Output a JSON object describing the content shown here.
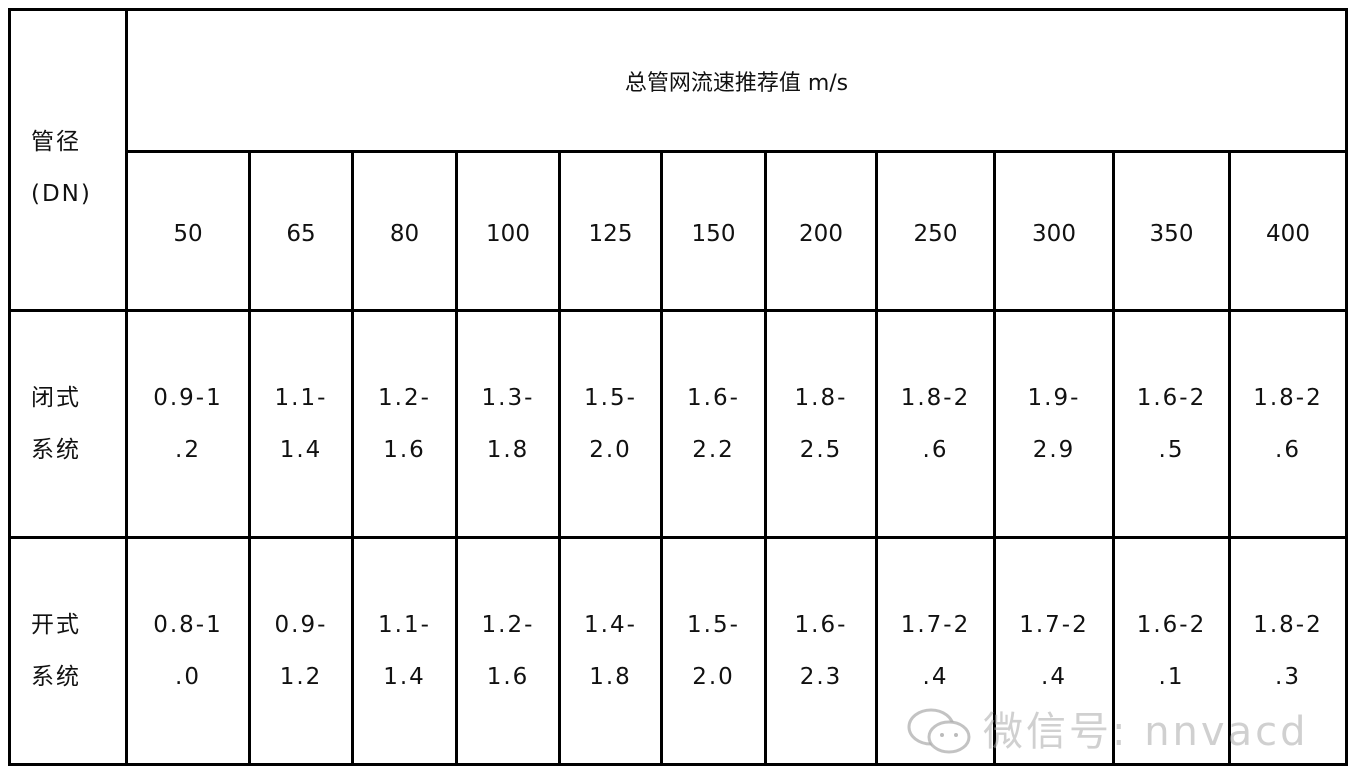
{
  "table": {
    "row_header_label": [
      "管径",
      "(DN)"
    ],
    "title": "总管网流速推荐值 m/s",
    "diameters": [
      "50",
      "65",
      "80",
      "100",
      "125",
      "150",
      "200",
      "250",
      "300",
      "350",
      "400"
    ],
    "rows": [
      {
        "label": [
          "闭式",
          "系统"
        ],
        "cells": [
          [
            "0.9-1",
            ".2"
          ],
          [
            "1.1-",
            "1.4"
          ],
          [
            "1.2-",
            "1.6"
          ],
          [
            "1.3-",
            "1.8"
          ],
          [
            "1.5-",
            "2.0"
          ],
          [
            "1.6-",
            "2.2"
          ],
          [
            "1.8-",
            "2.5"
          ],
          [
            "1.8-2",
            ".6"
          ],
          [
            "1.9-",
            "2.9"
          ],
          [
            "1.6-2",
            ".5"
          ],
          [
            "1.8-2",
            ".6"
          ]
        ]
      },
      {
        "label": [
          "开式",
          "系统"
        ],
        "cells": [
          [
            "0.8-1",
            ".0"
          ],
          [
            "0.9-",
            "1.2"
          ],
          [
            "1.1-",
            "1.4"
          ],
          [
            "1.2-",
            "1.6"
          ],
          [
            "1.4-",
            "1.8"
          ],
          [
            "1.5-",
            "2.0"
          ],
          [
            "1.6-",
            "2.3"
          ],
          [
            "1.7-2",
            ".4"
          ],
          [
            "1.7-2",
            ".4"
          ],
          [
            "1.6-2",
            ".1"
          ],
          [
            "1.8-2",
            ".3"
          ]
        ]
      }
    ]
  },
  "watermark": {
    "text": "微信号: nnvacd",
    "icon": "wechat-icon"
  }
}
